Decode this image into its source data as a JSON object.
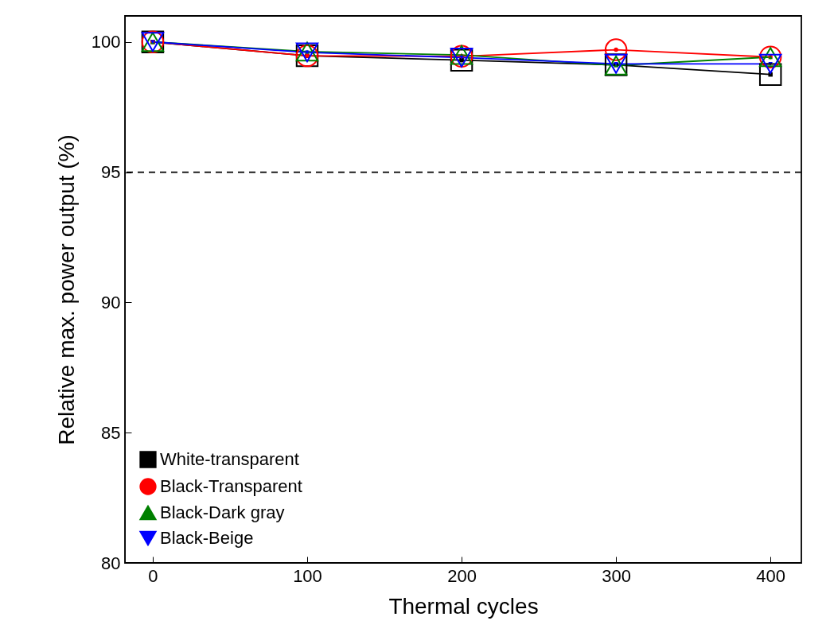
{
  "chart_data": {
    "type": "line",
    "xlabel": "Thermal cycles",
    "ylabel": "Relative max. power output (%)",
    "x": [
      0,
      100,
      200,
      300,
      400
    ],
    "series": [
      {
        "name": "White-transparent",
        "color": "#000000",
        "marker": "square",
        "values": [
          100,
          99.47,
          99.3,
          99.12,
          98.75
        ]
      },
      {
        "name": "Black-Transparent",
        "color": "#ff0000",
        "marker": "circle",
        "values": [
          100,
          99.47,
          99.45,
          99.7,
          99.42
        ]
      },
      {
        "name": "Black-Dark gray",
        "color": "#008000",
        "marker": "triangle",
        "values": [
          100,
          99.63,
          99.5,
          99.1,
          99.42
        ]
      },
      {
        "name": "Black-Beige",
        "color": "#0000ff",
        "marker": "triangle-down",
        "values": [
          100,
          99.6,
          99.4,
          99.16,
          99.16
        ]
      }
    ],
    "xlim": [
      -18,
      420
    ],
    "xticks": [
      0,
      100,
      200,
      300,
      400
    ],
    "ylim": [
      80,
      101
    ],
    "yticks": [
      80,
      85,
      90,
      95,
      100
    ],
    "ref_lines": [
      {
        "axis": "y",
        "value": 95,
        "line_style": "dashed",
        "color": "#000000"
      }
    ],
    "grid": false,
    "legend": "bottom left",
    "line_style": "solid"
  }
}
